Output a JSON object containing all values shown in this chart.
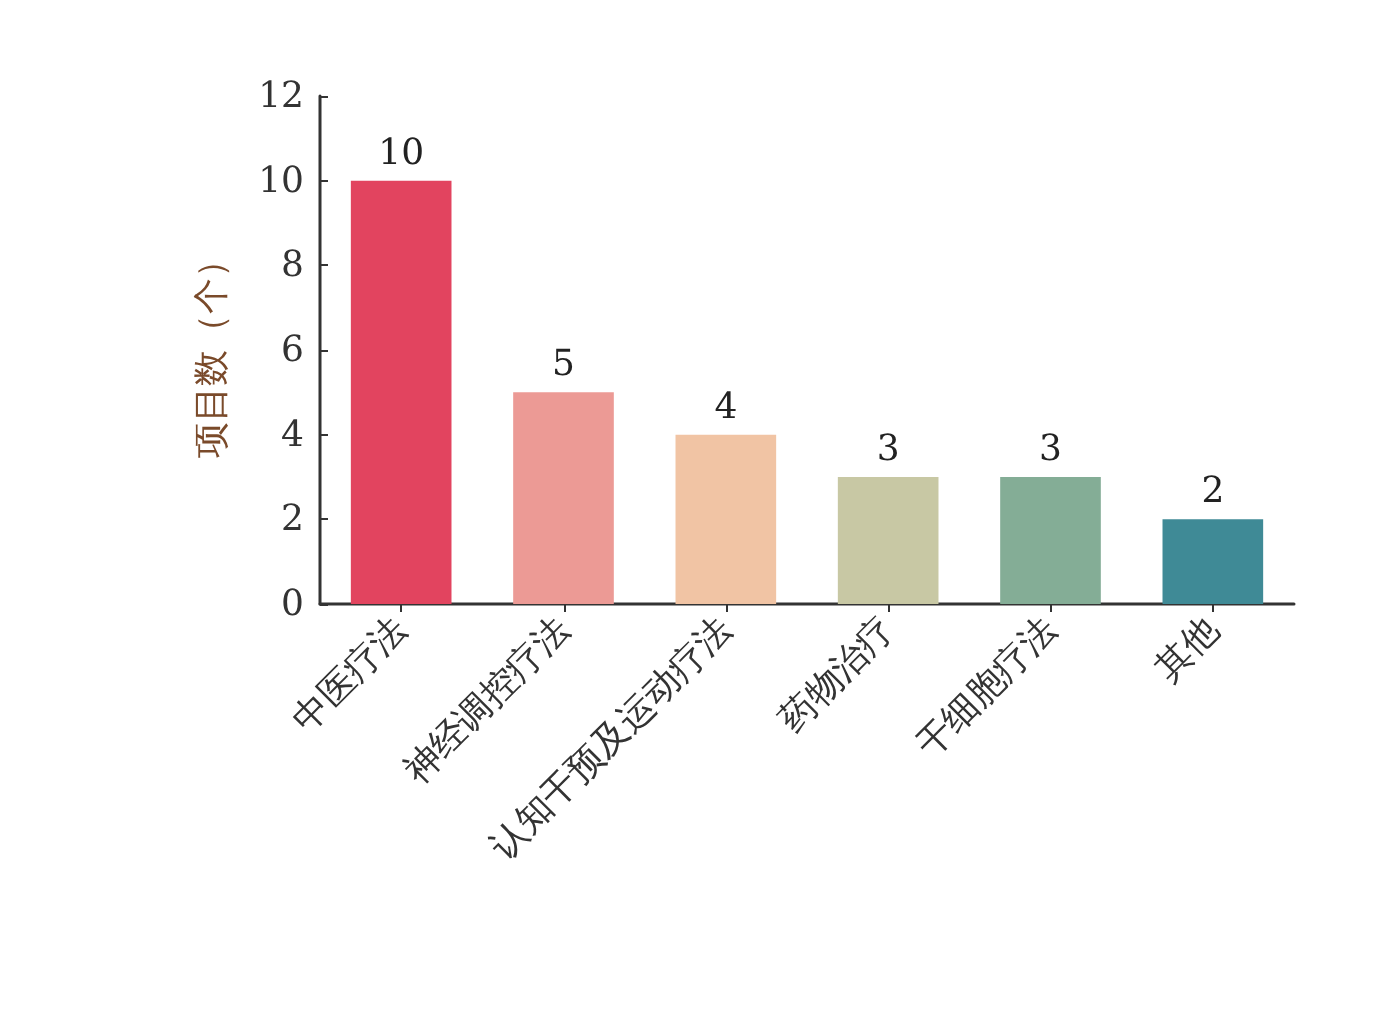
{
  "chart_data": {
    "type": "bar",
    "ylabel": "项目数（个）",
    "categories": [
      "中医疗法",
      "神经调控疗法",
      "认知干预及运动疗法",
      "药物治疗",
      "干细胞疗法",
      "其他"
    ],
    "values": [
      10,
      5,
      4,
      3,
      3,
      2
    ],
    "colors": [
      "#e2445f",
      "#ec9a95",
      "#f1c4a4",
      "#c8c8a4",
      "#84ad96",
      "#3f8a96"
    ],
    "ylim": [
      0,
      12
    ],
    "yticks": [
      0,
      2,
      4,
      6,
      8,
      10,
      12
    ],
    "grid": false,
    "data_labels": true
  }
}
